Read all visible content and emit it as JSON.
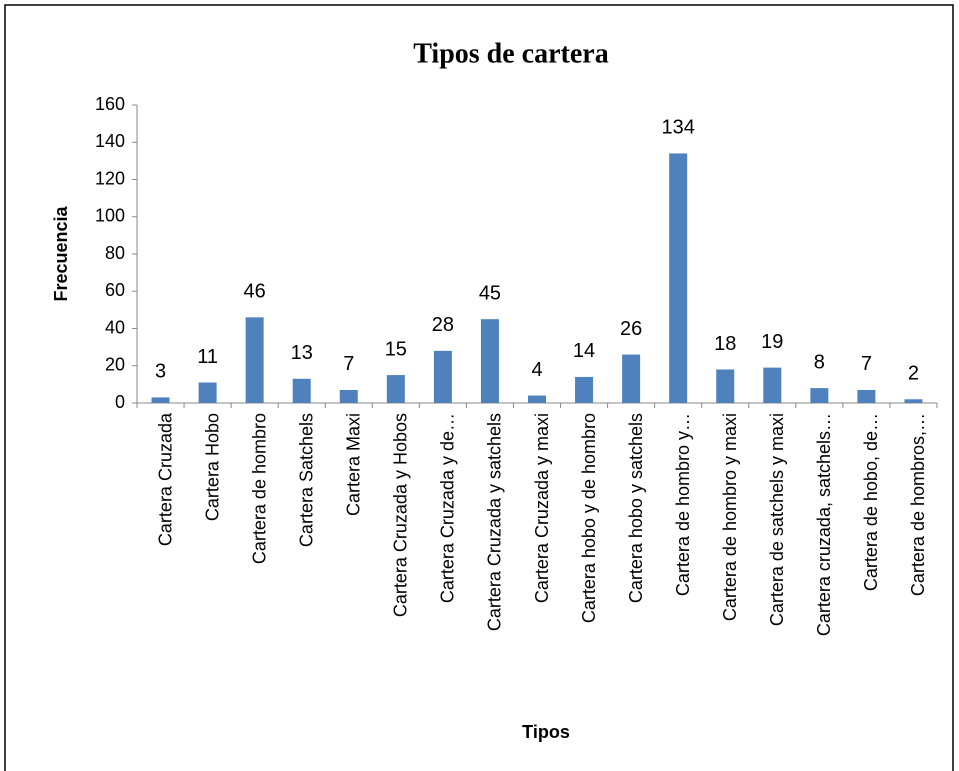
{
  "chart_data": {
    "type": "bar",
    "title": "Tipos de cartera",
    "x_label": "Tipos",
    "y_label": "Frecuencia",
    "categories": [
      "Cartera Cruzada",
      "Cartera Hobo",
      "Cartera de hombro",
      "Cartera Satchels",
      "Cartera Maxi",
      "Cartera Cruzada y Hobos",
      "Cartera Cruzada y de…",
      "Cartera Cruzada y satchels",
      "Cartera Cruzada y maxi",
      "Cartera hobo y de hombro",
      "Cartera hobo y satchels",
      "Cartera de hombro y…",
      "Cartera de hombro y maxi",
      "Cartera de satchels y maxi",
      "Cartera cruzada, satchels…",
      "Cartera de hobo, de…",
      "Cartera de hombros,…"
    ],
    "values": [
      3,
      11,
      46,
      13,
      7,
      15,
      28,
      45,
      4,
      14,
      26,
      134,
      18,
      19,
      8,
      7,
      2
    ],
    "color": "#4f81bd",
    "ylim": [
      0,
      160
    ],
    "yticks": [
      0,
      20,
      40,
      60,
      80,
      100,
      120,
      140,
      160
    ],
    "grid": false
  }
}
